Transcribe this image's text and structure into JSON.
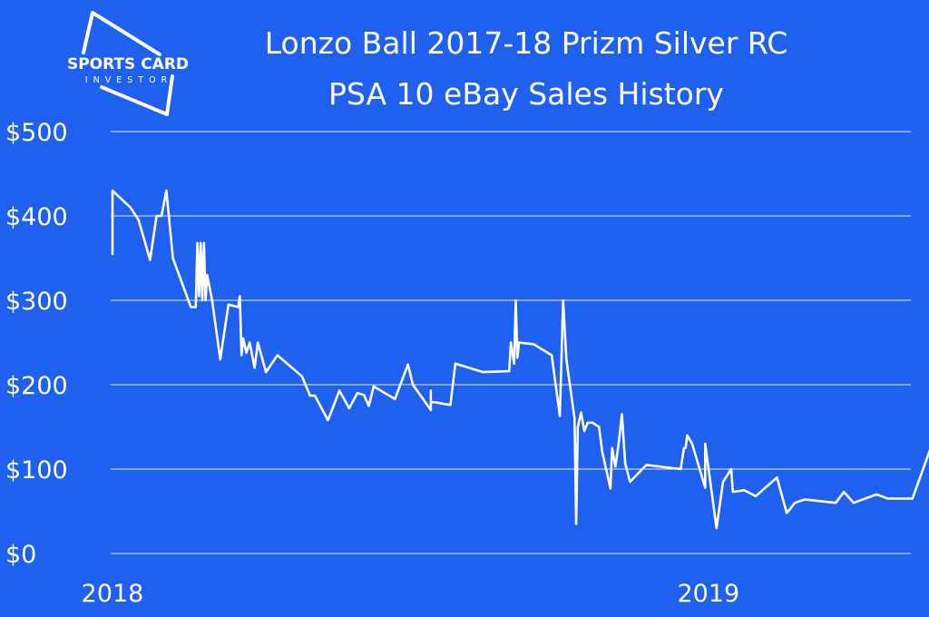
{
  "logo": {
    "line1": "SPORTS CARD",
    "line2": "INVESTOR"
  },
  "colors": {
    "background": "#2060ee",
    "line": "#ffffff",
    "grid": "#ffffff"
  },
  "chart_data": {
    "type": "line",
    "title": "Lonzo Ball 2017-18 Prizm Silver RC",
    "subtitle": "PSA 10 eBay Sales History",
    "xlabel": "",
    "ylabel": "",
    "x_ticks": [
      "2018",
      "2019"
    ],
    "y_ticks": [
      "$0",
      "$100",
      "$200",
      "$300",
      "$400",
      "$500"
    ],
    "ylim": [
      0,
      500
    ],
    "xlim": [
      "2018-01-01",
      "2019-05-05"
    ],
    "grid": "horizontal",
    "series": [
      {
        "values": [
          [
            "2018-01-01",
            355
          ],
          [
            "2018-01-01",
            430
          ],
          [
            "2018-01-12",
            410
          ],
          [
            "2018-01-17",
            395
          ],
          [
            "2018-01-24",
            348
          ],
          [
            "2018-01-28",
            400
          ],
          [
            "2018-01-31",
            400
          ],
          [
            "2018-02-03",
            430
          ],
          [
            "2018-02-07",
            350
          ],
          [
            "2018-02-18",
            292
          ],
          [
            "2018-02-21",
            292
          ],
          [
            "2018-02-22",
            368
          ],
          [
            "2018-02-23",
            305
          ],
          [
            "2018-02-24",
            368
          ],
          [
            "2018-02-25",
            300
          ],
          [
            "2018-02-26",
            368
          ],
          [
            "2018-02-27",
            300
          ],
          [
            "2018-02-28",
            330
          ],
          [
            "2018-03-03",
            300
          ],
          [
            "2018-03-08",
            230
          ],
          [
            "2018-03-13",
            295
          ],
          [
            "2018-03-19",
            292
          ],
          [
            "2018-03-20",
            305
          ],
          [
            "2018-03-21",
            235
          ],
          [
            "2018-03-22",
            255
          ],
          [
            "2018-03-24",
            238
          ],
          [
            "2018-03-26",
            250
          ],
          [
            "2018-03-29",
            220
          ],
          [
            "2018-03-31",
            250
          ],
          [
            "2018-04-05",
            215
          ],
          [
            "2018-04-12",
            235
          ],
          [
            "2018-04-27",
            210
          ],
          [
            "2018-05-02",
            187
          ],
          [
            "2018-05-05",
            187
          ],
          [
            "2018-05-13",
            158
          ],
          [
            "2018-05-20",
            193
          ],
          [
            "2018-05-26",
            172
          ],
          [
            "2018-05-31",
            190
          ],
          [
            "2018-06-04",
            188
          ],
          [
            "2018-06-07",
            175
          ],
          [
            "2018-06-10",
            198
          ],
          [
            "2018-06-23",
            183
          ],
          [
            "2018-07-01",
            224
          ],
          [
            "2018-07-04",
            200
          ],
          [
            "2018-07-15",
            170
          ],
          [
            "2018-07-15",
            193
          ],
          [
            "2018-07-15",
            180
          ],
          [
            "2018-07-27",
            176
          ],
          [
            "2018-07-30",
            225
          ],
          [
            "2018-08-16",
            215
          ],
          [
            "2018-09-01",
            216
          ],
          [
            "2018-09-02",
            250
          ],
          [
            "2018-09-04",
            225
          ],
          [
            "2018-09-05",
            300
          ],
          [
            "2018-09-06",
            232
          ],
          [
            "2018-09-07",
            250
          ],
          [
            "2018-09-16",
            248
          ],
          [
            "2018-09-27",
            235
          ],
          [
            "2018-10-02",
            163
          ],
          [
            "2018-10-04",
            300
          ],
          [
            "2018-10-06",
            230
          ],
          [
            "2018-10-11",
            160
          ],
          [
            "2018-10-12",
            35
          ],
          [
            "2018-10-13",
            150
          ],
          [
            "2018-10-15",
            167
          ],
          [
            "2018-10-17",
            145
          ],
          [
            "2018-10-19",
            155
          ],
          [
            "2018-10-22",
            155
          ],
          [
            "2018-10-26",
            150
          ],
          [
            "2018-10-28",
            120
          ],
          [
            "2018-11-02",
            77
          ],
          [
            "2018-11-03",
            125
          ],
          [
            "2018-11-05",
            103
          ],
          [
            "2018-11-07",
            130
          ],
          [
            "2018-11-09",
            165
          ],
          [
            "2018-11-11",
            107
          ],
          [
            "2018-11-14",
            85
          ],
          [
            "2018-11-24",
            105
          ],
          [
            "2018-12-15",
            100
          ],
          [
            "2018-12-17",
            125
          ],
          [
            "2018-12-18",
            125
          ],
          [
            "2018-12-19",
            140
          ],
          [
            "2018-12-22",
            130
          ],
          [
            "2018-12-30",
            78
          ],
          [
            "2018-12-30",
            130
          ],
          [
            "2019-01-06",
            30
          ],
          [
            "2019-01-10",
            85
          ],
          [
            "2019-01-15",
            100
          ],
          [
            "2019-01-16",
            73
          ],
          [
            "2019-01-23",
            75
          ],
          [
            "2019-01-30",
            68
          ],
          [
            "2019-02-12",
            90
          ],
          [
            "2019-02-18",
            48
          ],
          [
            "2019-02-23",
            60
          ],
          [
            "2019-03-01",
            64
          ],
          [
            "2019-03-20",
            60
          ],
          [
            "2019-03-25",
            73
          ],
          [
            "2019-03-31",
            60
          ],
          [
            "2019-04-14",
            70
          ],
          [
            "2019-04-21",
            65
          ],
          [
            "2019-05-06",
            65
          ],
          [
            "2019-05-19",
            135
          ]
        ]
      }
    ]
  }
}
